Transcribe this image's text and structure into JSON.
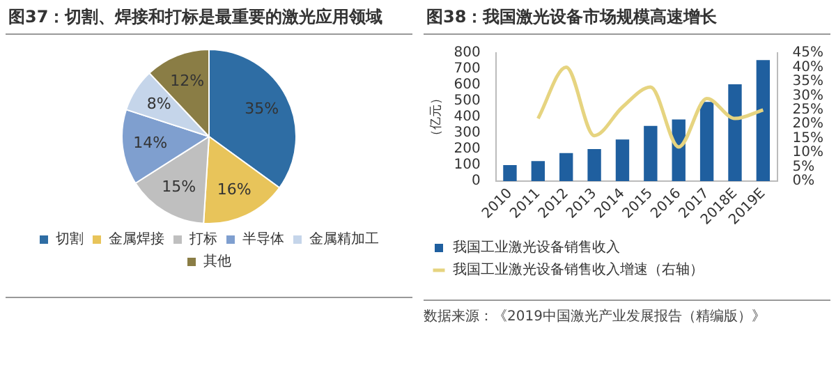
{
  "chart_data": [
    {
      "type": "pie",
      "title": "图37：切割、焊接和打标是最重要的激光应用领域",
      "categories": [
        "切割",
        "金属焊接",
        "打标",
        "半导体",
        "金属精加工",
        "其他"
      ],
      "values": [
        35,
        16,
        15,
        14,
        8,
        12
      ],
      "value_labels": [
        "35%",
        "16%",
        "15%",
        "14%",
        "8%",
        "12%"
      ],
      "colors": [
        "#2e6da4",
        "#e8c45a",
        "#bfbfbf",
        "#7f9fcf",
        "#c5d5ea",
        "#8a7d45"
      ],
      "legend": "bottom"
    },
    {
      "type": "bar",
      "title": "图38：我国激光设备市场规模高速增长",
      "ylabel": "（亿元）",
      "categories": [
        "2010",
        "2011",
        "2012",
        "2013",
        "2014",
        "2015",
        "2016",
        "2017",
        "2018E",
        "2019E"
      ],
      "series": [
        {
          "name": "我国工业激光设备销售收入",
          "type": "bar",
          "color": "#1f5f9f",
          "values": [
            100,
            125,
            175,
            200,
            260,
            345,
            385,
            495,
            605,
            755
          ]
        },
        {
          "name": "我国工业激光设备销售收入增速（右轴）",
          "type": "line",
          "axis": "y2",
          "color": "#e6d480",
          "values": [
            null,
            22,
            40,
            16,
            26,
            33,
            12,
            29,
            22,
            25
          ]
        }
      ],
      "ylim": [
        0,
        800
      ],
      "yticks": [
        0,
        100,
        200,
        300,
        400,
        500,
        600,
        700,
        800
      ],
      "y2lim": [
        0,
        45
      ],
      "y2ticks": [
        {
          "value": 0,
          "label": "0%"
        },
        {
          "value": 5,
          "label": "5%"
        },
        {
          "value": 10,
          "label": "10%"
        },
        {
          "value": 15,
          "label": "15%"
        },
        {
          "value": 20,
          "label": "20%"
        },
        {
          "value": 25,
          "label": "25%"
        },
        {
          "value": 30,
          "label": "30%"
        },
        {
          "value": 35,
          "label": "35%"
        },
        {
          "value": 40,
          "label": "40%"
        },
        {
          "value": 45,
          "label": "45%"
        }
      ],
      "legend": "bottom",
      "annotations": [
        "数据来源：《2019中国激光产业发展报告（精编版）》"
      ]
    }
  ]
}
